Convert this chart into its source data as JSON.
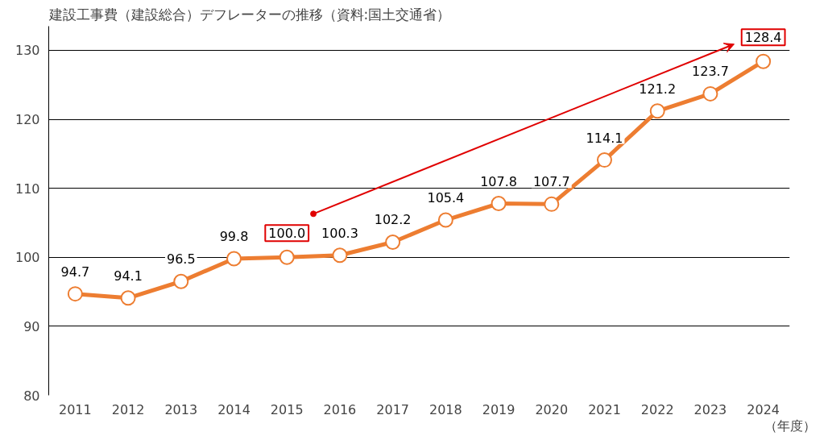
{
  "chart_data": {
    "type": "line",
    "title": "建設工事費（建設総合）デフレーターの推移（資料:国土交通省）",
    "xlabel": "（年度）",
    "categories": [
      "2011",
      "2012",
      "2013",
      "2014",
      "2015",
      "2016",
      "2017",
      "2018",
      "2019",
      "2020",
      "2021",
      "2022",
      "2023",
      "2024"
    ],
    "series": [
      {
        "color": "#ed7d31",
        "values": [
          94.7,
          94.1,
          96.5,
          99.8,
          100.0,
          100.3,
          102.2,
          105.4,
          107.8,
          107.7,
          114.1,
          121.2,
          123.7,
          128.4
        ]
      }
    ],
    "value_labels": [
      "94.7",
      "94.1",
      "96.5",
      "99.8",
      null,
      "100.3",
      "102.2",
      "105.4",
      "107.8",
      "107.7",
      "114.1",
      "121.2",
      "123.7",
      null
    ],
    "annotations": [
      {
        "text": "100.0",
        "x": "2015",
        "y": 100.0
      },
      {
        "text": "128.4",
        "x": "2024",
        "y": 128.4
      }
    ],
    "ylim": [
      80,
      133.5
    ],
    "yticks": [
      80,
      90,
      100,
      110,
      120,
      130
    ],
    "grid": "y",
    "marker": "circle",
    "line_style": "solid"
  }
}
